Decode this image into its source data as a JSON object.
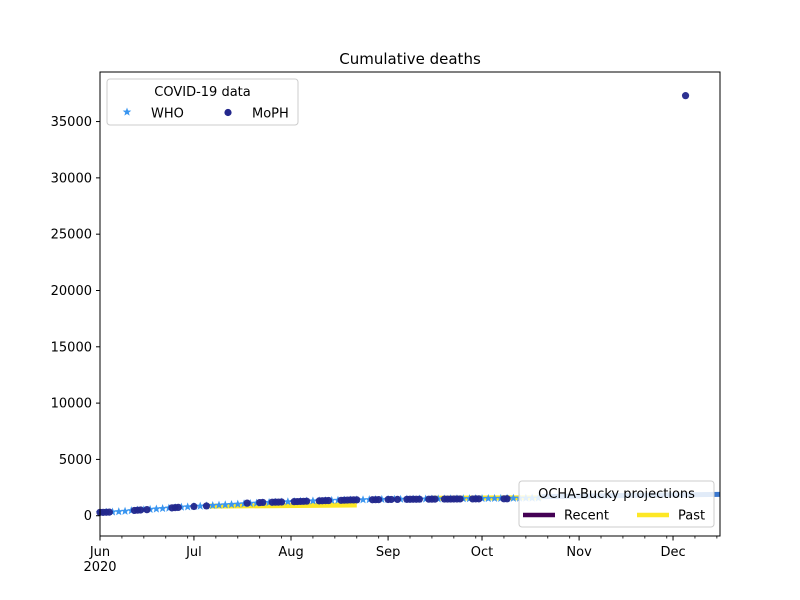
{
  "chart_data": {
    "type": "scatter",
    "title": "Cumulative deaths",
    "xlabel": "",
    "ylabel": "",
    "x_axis": {
      "type": "date",
      "range": [
        "2020-06-01",
        "2020-12-16"
      ],
      "major_ticks": [
        {
          "date": "2020-06-01",
          "label": "Jun",
          "sublabel": "2020"
        },
        {
          "date": "2020-07-01",
          "label": "Jul"
        },
        {
          "date": "2020-08-01",
          "label": "Aug"
        },
        {
          "date": "2020-09-01",
          "label": "Sep"
        },
        {
          "date": "2020-10-01",
          "label": "Oct"
        },
        {
          "date": "2020-11-01",
          "label": "Nov"
        },
        {
          "date": "2020-12-01",
          "label": "Dec"
        }
      ]
    },
    "ylim": [
      -1800,
      39400
    ],
    "yticks": [
      0,
      5000,
      10000,
      15000,
      20000,
      25000,
      30000,
      35000
    ],
    "grid": false,
    "legends": [
      {
        "title": "COVID-19 data",
        "placement": "upper-left",
        "entries": [
          {
            "label": "WHO",
            "marker": "star",
            "color": "#3a96f0"
          },
          {
            "label": "MoPH",
            "marker": "circle",
            "color": "#23278c"
          }
        ]
      },
      {
        "title": "OCHA-Bucky projections",
        "placement": "lower-right",
        "entries": [
          {
            "label": "Recent",
            "marker": "line",
            "color": "#440154"
          },
          {
            "label": "Past",
            "marker": "line",
            "color": "#fde725"
          }
        ]
      }
    ],
    "projections": [
      {
        "name": "Past",
        "color": "#fde725",
        "x": [
          "2020-07-06",
          "2020-08-22"
        ],
        "y": [
          850,
          950
        ]
      },
      {
        "name": "Past",
        "color": "#fde725",
        "x": [
          "2020-09-15",
          "2020-10-20"
        ],
        "y": [
          1550,
          1600
        ]
      },
      {
        "name": "Recent",
        "color": "#3a78d0",
        "x": [
          "2020-10-20",
          "2020-12-16"
        ],
        "y": [
          1700,
          1900
        ]
      }
    ],
    "series": [
      {
        "name": "WHO",
        "marker": "star",
        "color": "#3a96f0",
        "points": [
          [
            "2020-06-01",
            300
          ],
          [
            "2020-06-03",
            310
          ],
          [
            "2020-06-05",
            330
          ],
          [
            "2020-06-07",
            360
          ],
          [
            "2020-06-09",
            400
          ],
          [
            "2020-06-11",
            450
          ],
          [
            "2020-06-13",
            500
          ],
          [
            "2020-06-15",
            530
          ],
          [
            "2020-06-17",
            560
          ],
          [
            "2020-06-19",
            600
          ],
          [
            "2020-06-21",
            640
          ],
          [
            "2020-06-23",
            680
          ],
          [
            "2020-06-25",
            720
          ],
          [
            "2020-06-27",
            760
          ],
          [
            "2020-06-29",
            790
          ],
          [
            "2020-07-01",
            820
          ],
          [
            "2020-07-03",
            850
          ],
          [
            "2020-07-05",
            880
          ],
          [
            "2020-07-07",
            910
          ],
          [
            "2020-07-09",
            940
          ],
          [
            "2020-07-11",
            970
          ],
          [
            "2020-07-13",
            1000
          ],
          [
            "2020-07-15",
            1030
          ],
          [
            "2020-07-17",
            1060
          ],
          [
            "2020-07-19",
            1090
          ],
          [
            "2020-07-21",
            1120
          ],
          [
            "2020-07-23",
            1150
          ],
          [
            "2020-07-25",
            1180
          ],
          [
            "2020-07-27",
            1200
          ],
          [
            "2020-07-29",
            1220
          ],
          [
            "2020-07-31",
            1240
          ],
          [
            "2020-08-02",
            1260
          ],
          [
            "2020-08-04",
            1280
          ],
          [
            "2020-08-06",
            1300
          ],
          [
            "2020-08-08",
            1315
          ],
          [
            "2020-08-10",
            1330
          ],
          [
            "2020-08-12",
            1345
          ],
          [
            "2020-08-14",
            1360
          ],
          [
            "2020-08-16",
            1375
          ],
          [
            "2020-08-18",
            1390
          ],
          [
            "2020-08-20",
            1400
          ],
          [
            "2020-08-22",
            1410
          ],
          [
            "2020-08-24",
            1420
          ],
          [
            "2020-08-26",
            1430
          ],
          [
            "2020-08-28",
            1440
          ],
          [
            "2020-08-30",
            1450
          ],
          [
            "2020-09-01",
            1455
          ],
          [
            "2020-09-03",
            1460
          ],
          [
            "2020-09-05",
            1465
          ],
          [
            "2020-09-07",
            1470
          ],
          [
            "2020-09-09",
            1475
          ],
          [
            "2020-09-11",
            1480
          ],
          [
            "2020-09-13",
            1485
          ],
          [
            "2020-09-15",
            1490
          ],
          [
            "2020-09-17",
            1495
          ],
          [
            "2020-09-19",
            1500
          ],
          [
            "2020-09-21",
            1505
          ],
          [
            "2020-09-23",
            1510
          ],
          [
            "2020-09-25",
            1515
          ],
          [
            "2020-09-27",
            1520
          ],
          [
            "2020-09-29",
            1525
          ],
          [
            "2020-10-01",
            1530
          ],
          [
            "2020-10-03",
            1535
          ],
          [
            "2020-10-05",
            1540
          ],
          [
            "2020-10-07",
            1545
          ],
          [
            "2020-10-09",
            1550
          ],
          [
            "2020-10-11",
            1555
          ],
          [
            "2020-10-13",
            1560
          ],
          [
            "2020-10-15",
            1565
          ],
          [
            "2020-10-17",
            1570
          ],
          [
            "2020-10-19",
            1575
          ]
        ]
      },
      {
        "name": "MoPH",
        "marker": "circle",
        "color": "#23278c",
        "points": [
          [
            "2020-06-01",
            300
          ],
          [
            "2020-06-02",
            300
          ],
          [
            "2020-06-03",
            310
          ],
          [
            "2020-06-04",
            320
          ],
          [
            "2020-06-12",
            470
          ],
          [
            "2020-06-13",
            490
          ],
          [
            "2020-06-14",
            510
          ],
          [
            "2020-06-16",
            540
          ],
          [
            "2020-06-24",
            700
          ],
          [
            "2020-06-25",
            720
          ],
          [
            "2020-06-26",
            740
          ],
          [
            "2020-07-01",
            820
          ],
          [
            "2020-07-05",
            870
          ],
          [
            "2020-07-18",
            1120
          ],
          [
            "2020-07-22",
            1170
          ],
          [
            "2020-07-23",
            1180
          ],
          [
            "2020-07-26",
            1200
          ],
          [
            "2020-07-27",
            1205
          ],
          [
            "2020-07-28",
            1210
          ],
          [
            "2020-07-29",
            1220
          ],
          [
            "2020-08-02",
            1250
          ],
          [
            "2020-08-03",
            1260
          ],
          [
            "2020-08-04",
            1270
          ],
          [
            "2020-08-05",
            1280
          ],
          [
            "2020-08-06",
            1290
          ],
          [
            "2020-08-10",
            1320
          ],
          [
            "2020-08-11",
            1330
          ],
          [
            "2020-08-12",
            1340
          ],
          [
            "2020-08-13",
            1350
          ],
          [
            "2020-08-17",
            1370
          ],
          [
            "2020-08-18",
            1380
          ],
          [
            "2020-08-19",
            1390
          ],
          [
            "2020-08-20",
            1400
          ],
          [
            "2020-08-21",
            1405
          ],
          [
            "2020-08-22",
            1410
          ],
          [
            "2020-08-27",
            1420
          ],
          [
            "2020-08-28",
            1425
          ],
          [
            "2020-08-29",
            1430
          ],
          [
            "2020-09-01",
            1440
          ],
          [
            "2020-09-02",
            1445
          ],
          [
            "2020-09-04",
            1450
          ],
          [
            "2020-09-07",
            1455
          ],
          [
            "2020-09-08",
            1460
          ],
          [
            "2020-09-09",
            1462
          ],
          [
            "2020-09-10",
            1465
          ],
          [
            "2020-09-11",
            1468
          ],
          [
            "2020-09-14",
            1470
          ],
          [
            "2020-09-15",
            1472
          ],
          [
            "2020-09-16",
            1475
          ],
          [
            "2020-09-19",
            1478
          ],
          [
            "2020-09-20",
            1480
          ],
          [
            "2020-09-21",
            1482
          ],
          [
            "2020-09-22",
            1485
          ],
          [
            "2020-09-23",
            1488
          ],
          [
            "2020-09-24",
            1490
          ],
          [
            "2020-09-28",
            1492
          ],
          [
            "2020-09-29",
            1495
          ],
          [
            "2020-09-30",
            1498
          ],
          [
            "2020-10-08",
            1500
          ],
          [
            "2020-10-09",
            1505
          ],
          [
            "2020-12-05",
            37300
          ]
        ]
      }
    ]
  }
}
